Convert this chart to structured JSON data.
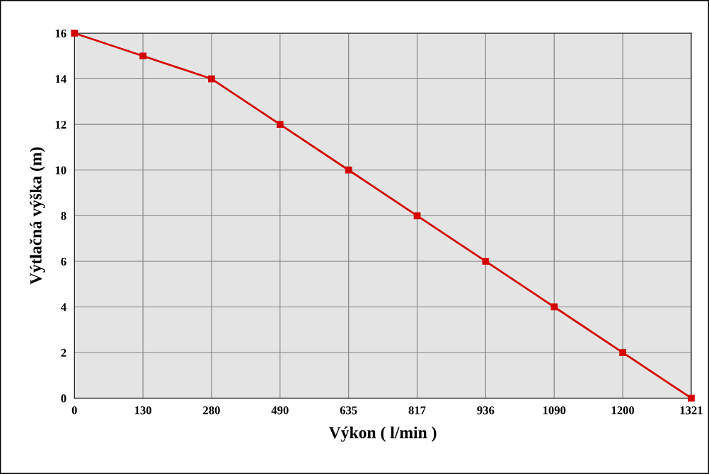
{
  "chart_data": {
    "type": "line",
    "xlabel": "Výkon ( l/min )",
    "ylabel": "Výtlačná výška (m)",
    "categories": [
      "0",
      "130",
      "280",
      "490",
      "635",
      "817",
      "936",
      "1090",
      "1200",
      "1321"
    ],
    "series": [
      {
        "color": "#d40000",
        "values": [
          16,
          15,
          14,
          12,
          10,
          8,
          6,
          4,
          2,
          0
        ]
      }
    ],
    "ylim": [
      0,
      16
    ],
    "yticks": [
      0,
      2,
      4,
      6,
      8,
      10,
      12,
      14,
      16
    ],
    "grid": true,
    "marker": "square",
    "line_style": "solid"
  }
}
